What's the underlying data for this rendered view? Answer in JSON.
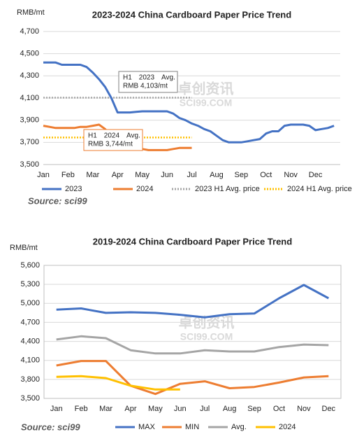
{
  "chart_data": [
    {
      "type": "line",
      "title": "2023-2024 China Cardboard Paper Price Trend",
      "y_label": "RMB/mt",
      "categories": [
        "Jan",
        null,
        null,
        null,
        "Feb",
        null,
        null,
        null,
        "Mar",
        null,
        null,
        null,
        "Apr",
        null,
        null,
        null,
        "May",
        null,
        null,
        null,
        "Jun",
        null,
        null,
        null,
        "Jul",
        null,
        null,
        null,
        "Aug",
        null,
        null,
        null,
        "Sep",
        null,
        null,
        null,
        "Oct",
        null,
        null,
        null,
        "Nov",
        null,
        null,
        null,
        "Dec",
        null,
        null,
        null
      ],
      "series": [
        {
          "name": "2023",
          "color": "#4472c4",
          "values": [
            4420,
            4420,
            4420,
            4400,
            4400,
            4400,
            4400,
            4380,
            4330,
            4270,
            4200,
            4100,
            3970,
            3970,
            3970,
            3975,
            3980,
            3980,
            3980,
            3980,
            3980,
            3960,
            3920,
            3900,
            3870,
            3850,
            3820,
            3800,
            3760,
            3720,
            3700,
            3700,
            3700,
            3710,
            3720,
            3730,
            3780,
            3800,
            3800,
            3850,
            3860,
            3860,
            3860,
            3850,
            3810,
            3820,
            3830,
            3850
          ]
        },
        {
          "name": "2024",
          "color": "#ed7d31",
          "values": [
            3850,
            3840,
            3830,
            3830,
            3830,
            3830,
            3840,
            3840,
            3850,
            3860,
            3820,
            3750,
            3700,
            3660,
            3650,
            3640,
            3640,
            3630,
            3630,
            3630,
            3630,
            3640,
            3650,
            3650,
            3650,
            null,
            null,
            null,
            null,
            null,
            null,
            null,
            null,
            null,
            null,
            null,
            null,
            null,
            null,
            null,
            null,
            null,
            null,
            null,
            null,
            null,
            null,
            null
          ]
        }
      ],
      "reference_lines": [
        {
          "name": "2023 H1 Avg. price",
          "value": 4103,
          "color": "#a5a5a5"
        },
        {
          "name": "2024 H1 Avg. price",
          "value": 3744,
          "color": "#ffc000"
        }
      ],
      "annotations": [
        {
          "lines": [
            "H1　2023　Avg.",
            "RMB 4,103/mt"
          ]
        },
        {
          "lines": [
            "H1　2024　Avg.",
            "RMB 3,744/mt"
          ]
        }
      ],
      "ylim": [
        3500,
        4700
      ],
      "yticks": [
        {
          "value": 3500,
          "label": "3,500"
        },
        {
          "value": 3700,
          "label": "3,700"
        },
        {
          "value": 3900,
          "label": "3,900"
        },
        {
          "value": 4100,
          "label": "4,100"
        },
        {
          "value": 4300,
          "label": "4,300"
        },
        {
          "value": 4500,
          "label": "4,500"
        },
        {
          "value": 4700,
          "label": "4,700"
        }
      ],
      "grid": true,
      "legend": "bottom",
      "source": "Source: sci99",
      "watermark": [
        "卓创资讯",
        "SCI99.COM"
      ]
    },
    {
      "type": "line",
      "title": "2019-2024 China Cardboard Paper Price Trend",
      "y_label": "RMB/mt",
      "categories": [
        "Jan",
        "Feb",
        "Mar",
        "Apr",
        "May",
        "Jun",
        "Jul",
        "Aug",
        "Sep",
        "Oct",
        "Nov",
        "Dec"
      ],
      "series": [
        {
          "name": "MAX",
          "color": "#4472c4",
          "values": [
            4900,
            4920,
            4850,
            4860,
            4850,
            4820,
            4780,
            4830,
            4840,
            5080,
            5290,
            5080
          ]
        },
        {
          "name": "MIN",
          "color": "#ed7d31",
          "values": [
            4020,
            4090,
            4090,
            3700,
            3570,
            3730,
            3770,
            3660,
            3680,
            3750,
            3830,
            3850
          ]
        },
        {
          "name": "Avg.",
          "color": "#a5a5a5",
          "values": [
            4430,
            4480,
            4450,
            4260,
            4210,
            4210,
            4260,
            4240,
            4240,
            4310,
            4350,
            4340
          ]
        },
        {
          "name": "2024",
          "color": "#ffc000",
          "values": [
            3840,
            3850,
            3820,
            3700,
            3640,
            3640,
            null,
            null,
            null,
            null,
            null,
            null
          ]
        }
      ],
      "ylim": [
        3500,
        5600
      ],
      "yticks": [
        {
          "value": 3500,
          "label": "3,500"
        },
        {
          "value": 3800,
          "label": "3,800"
        },
        {
          "value": 4100,
          "label": "4,100"
        },
        {
          "value": 4400,
          "label": "4,400"
        },
        {
          "value": 4700,
          "label": "4,700"
        },
        {
          "value": 5000,
          "label": "5,000"
        },
        {
          "value": 5300,
          "label": "5,300"
        },
        {
          "value": 5600,
          "label": "5,600"
        }
      ],
      "grid": true,
      "legend": "bottom",
      "source": "Source: sci99",
      "watermark": [
        "卓创资讯",
        "SCI99.COM"
      ]
    }
  ]
}
